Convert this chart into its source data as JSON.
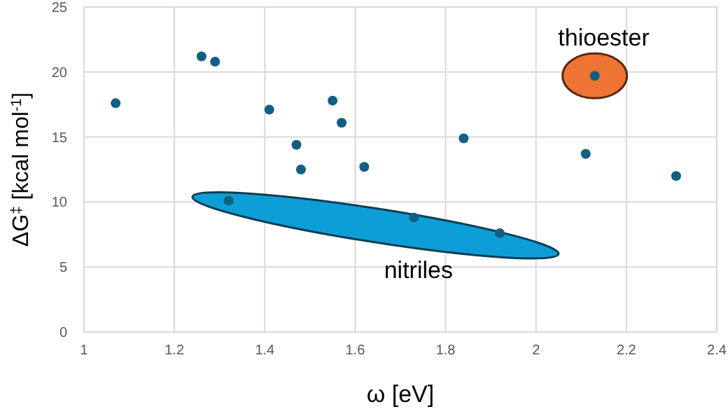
{
  "chart_data": {
    "type": "scatter",
    "xlabel": "ω [eV]",
    "ylabel": "ΔG$^{‡}$ [kcal mol$^{-1}$]",
    "x": [
      1.07,
      1.26,
      1.29,
      1.32,
      1.41,
      1.47,
      1.48,
      1.55,
      1.57,
      1.62,
      1.73,
      1.84,
      1.92,
      2.11,
      2.13,
      2.31
    ],
    "values": [
      17.6,
      21.2,
      20.8,
      10.1,
      17.1,
      14.4,
      12.5,
      17.8,
      16.1,
      12.7,
      8.8,
      14.9,
      7.6,
      13.7,
      19.7,
      12.0
    ],
    "color": "#135e82",
    "marker": "circle",
    "grid": true,
    "xlim": [
      1,
      2.4
    ],
    "xticks": [
      1,
      1.2,
      1.4,
      1.6,
      1.8,
      2,
      2.2,
      2.4
    ],
    "ylim": [
      0,
      25
    ],
    "yticks": [
      0,
      5,
      10,
      15,
      20,
      25
    ],
    "annotations": [
      "nitriles",
      "thioester"
    ]
  }
}
